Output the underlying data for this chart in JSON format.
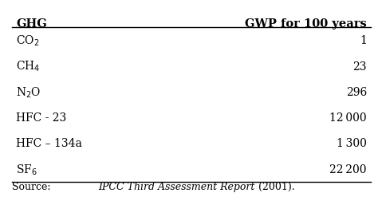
{
  "col1_header": "GHG",
  "col2_header": "GWP for 100 years",
  "rows": [
    {
      "ghg": "CO$_2$",
      "gwp": "1"
    },
    {
      "ghg": "CH$_4$",
      "gwp": "23"
    },
    {
      "ghg": "N$_2$O",
      "gwp": "296"
    },
    {
      "ghg": "HFC - 23",
      "gwp": "12 000"
    },
    {
      "ghg": "HFC – 134a",
      "gwp": "1 300"
    },
    {
      "ghg": "SF$_6$",
      "gwp": "22 200"
    }
  ],
  "source_normal_1": "Source: ",
  "source_italic": "IPCC Third Assessment Report",
  "source_normal_2": " (2001).",
  "bg_color": "#ffffff",
  "header_fontsize": 10.5,
  "row_fontsize": 10.0,
  "source_fontsize": 9.0
}
